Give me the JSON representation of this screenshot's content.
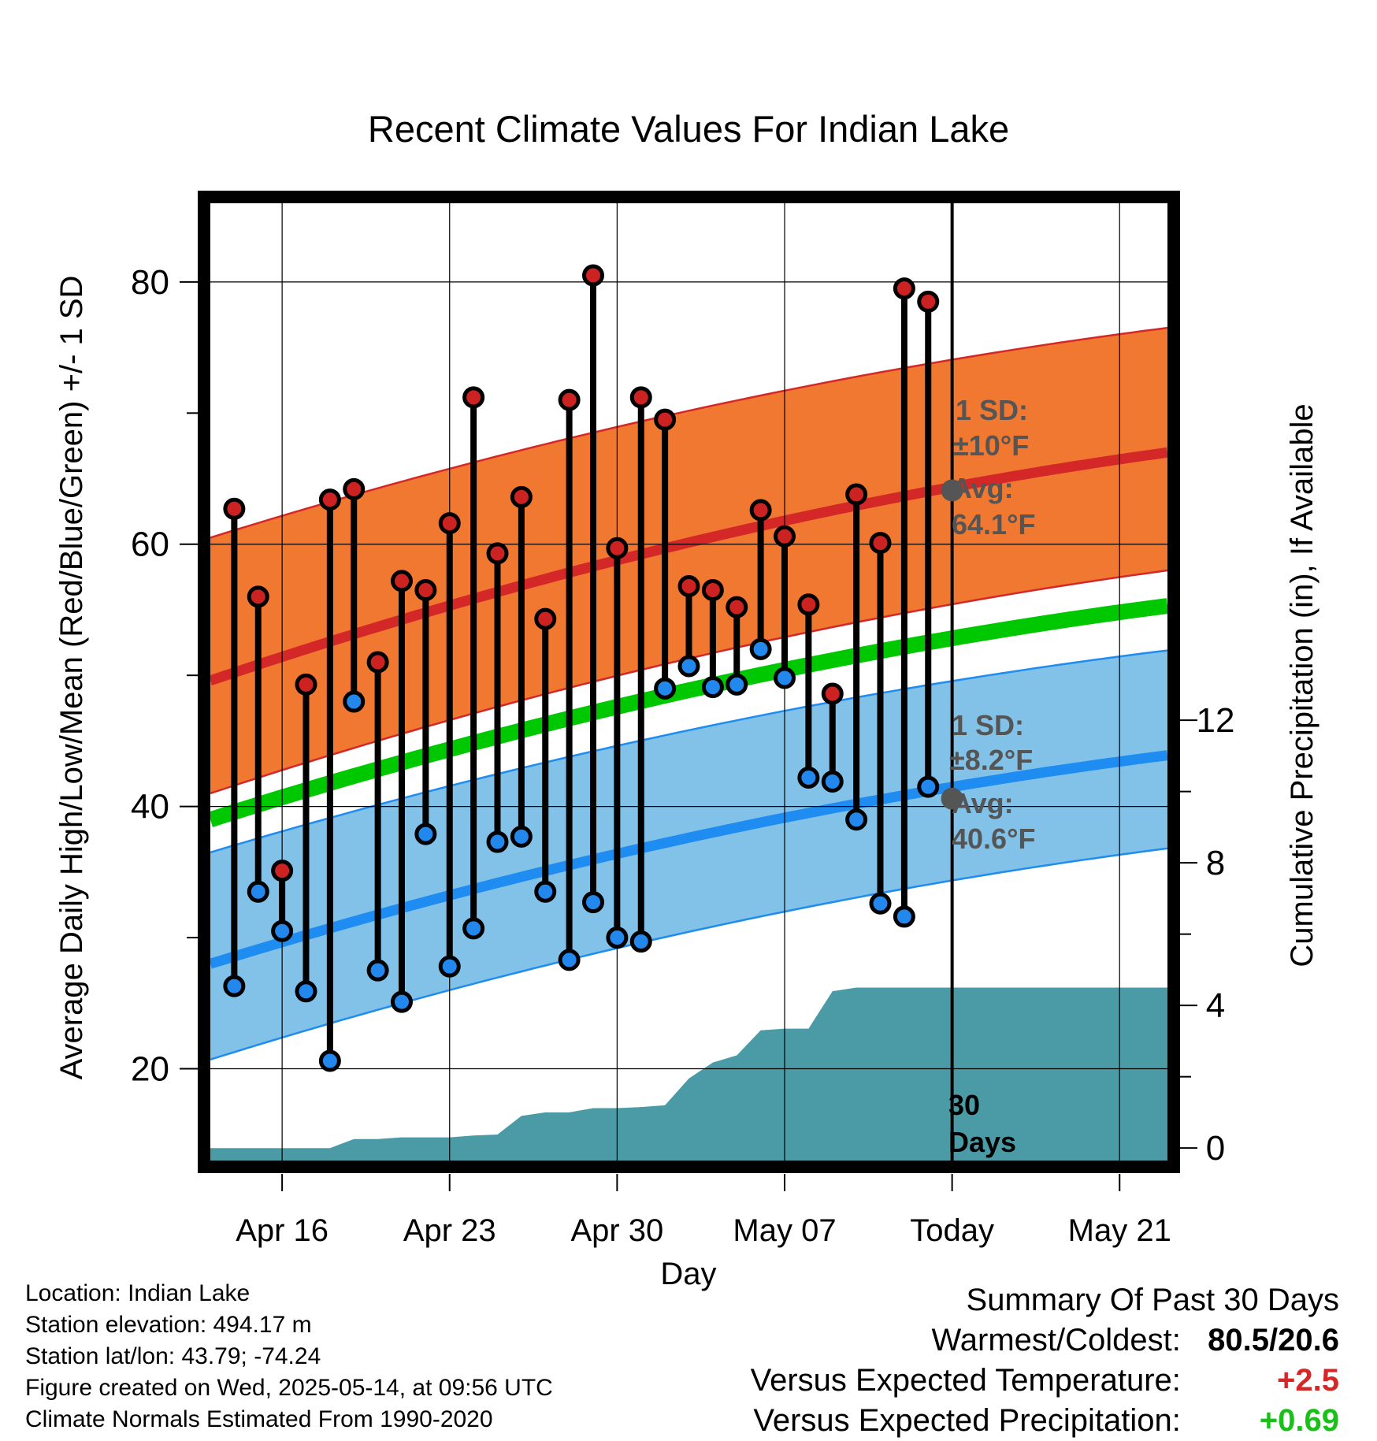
{
  "chart_data": {
    "type": "line",
    "title": "Recent Climate Values For Indian Lake",
    "xlabel": "Day",
    "ylabel_left": "Average Daily High/Low/Mean (Red/Blue/Green) +/- 1 SD",
    "ylabel_right": "Cumulative Precipitation (in), If Available",
    "x_ticks": [
      "Apr 16",
      "Apr 23",
      "Apr 30",
      "May 07",
      "Today",
      "May 21"
    ],
    "y_left_ticks": [
      "20",
      "40",
      "60",
      "80"
    ],
    "y_right_ticks": [
      "0",
      "4",
      "8",
      "12"
    ],
    "x_range": [
      "2025-04-13",
      "2025-05-23"
    ],
    "y_left_range": [
      13,
      86
    ],
    "today": "2025-05-14",
    "normals": {
      "dates": [
        "2025-04-13",
        "2025-05-23"
      ],
      "high_mean": [
        49.6,
        67.0
      ],
      "high_upper": [
        60.5,
        76.5
      ],
      "high_lower": [
        41.0,
        58.0
      ],
      "mean": [
        39.0,
        55.3
      ],
      "low_mean": [
        28.0,
        43.9
      ],
      "low_upper": [
        36.5,
        51.9
      ],
      "low_lower": [
        20.7,
        36.8
      ]
    },
    "observed": [
      {
        "date": "2025-04-14",
        "high": 62.7,
        "low": 26.3
      },
      {
        "date": "2025-04-15",
        "high": 56.0,
        "low": 33.5
      },
      {
        "date": "2025-04-16",
        "high": 35.1,
        "low": 30.5
      },
      {
        "date": "2025-04-17",
        "high": 49.3,
        "low": 25.9
      },
      {
        "date": "2025-04-18",
        "high": 63.4,
        "low": 20.6
      },
      {
        "date": "2025-04-19",
        "high": 64.2,
        "low": 48.0
      },
      {
        "date": "2025-04-20",
        "high": 51.0,
        "low": 27.5
      },
      {
        "date": "2025-04-21",
        "high": 57.2,
        "low": 25.1
      },
      {
        "date": "2025-04-22",
        "high": 56.5,
        "low": 37.9
      },
      {
        "date": "2025-04-23",
        "high": 61.6,
        "low": 27.8
      },
      {
        "date": "2025-04-24",
        "high": 71.2,
        "low": 30.7
      },
      {
        "date": "2025-04-25",
        "high": 59.3,
        "low": 37.3
      },
      {
        "date": "2025-04-26",
        "high": 63.6,
        "low": 37.7
      },
      {
        "date": "2025-04-27",
        "high": 54.3,
        "low": 33.5
      },
      {
        "date": "2025-04-28",
        "high": 71.0,
        "low": 28.3
      },
      {
        "date": "2025-04-29",
        "high": 80.5,
        "low": 32.7
      },
      {
        "date": "2025-04-30",
        "high": 59.7,
        "low": 30.0
      },
      {
        "date": "2025-05-01",
        "high": 71.2,
        "low": 29.7
      },
      {
        "date": "2025-05-02",
        "high": 69.5,
        "low": 49.0
      },
      {
        "date": "2025-05-03",
        "high": 56.8,
        "low": 50.7
      },
      {
        "date": "2025-05-04",
        "high": 56.5,
        "low": 49.1
      },
      {
        "date": "2025-05-05",
        "high": 55.2,
        "low": 49.3
      },
      {
        "date": "2025-05-06",
        "high": 62.6,
        "low": 52.0
      },
      {
        "date": "2025-05-07",
        "high": 60.6,
        "low": 49.8
      },
      {
        "date": "2025-05-08",
        "high": 55.4,
        "low": 42.2
      },
      {
        "date": "2025-05-09",
        "high": 48.6,
        "low": 41.9
      },
      {
        "date": "2025-05-10",
        "high": 63.8,
        "low": 39.0
      },
      {
        "date": "2025-05-11",
        "high": 60.1,
        "low": 32.6
      },
      {
        "date": "2025-05-12",
        "high": 79.5,
        "low": 31.6
      },
      {
        "date": "2025-05-13",
        "high": 78.5,
        "low": 41.5
      }
    ],
    "precipitation_cumulative": [
      {
        "date": "2025-04-13",
        "value": 0.0
      },
      {
        "date": "2025-04-18",
        "value": 0.0
      },
      {
        "date": "2025-04-19",
        "value": 0.25
      },
      {
        "date": "2025-04-20",
        "value": 0.25
      },
      {
        "date": "2025-04-21",
        "value": 0.3
      },
      {
        "date": "2025-04-23",
        "value": 0.3
      },
      {
        "date": "2025-04-24",
        "value": 0.35
      },
      {
        "date": "2025-04-25",
        "value": 0.38
      },
      {
        "date": "2025-04-26",
        "value": 0.9
      },
      {
        "date": "2025-04-27",
        "value": 1.0
      },
      {
        "date": "2025-04-28",
        "value": 1.0
      },
      {
        "date": "2025-04-29",
        "value": 1.12
      },
      {
        "date": "2025-04-30",
        "value": 1.12
      },
      {
        "date": "2025-05-01",
        "value": 1.15
      },
      {
        "date": "2025-05-02",
        "value": 1.2
      },
      {
        "date": "2025-05-03",
        "value": 1.95
      },
      {
        "date": "2025-05-04",
        "value": 2.4
      },
      {
        "date": "2025-05-05",
        "value": 2.6
      },
      {
        "date": "2025-05-06",
        "value": 3.3
      },
      {
        "date": "2025-05-07",
        "value": 3.35
      },
      {
        "date": "2025-05-08",
        "value": 3.35
      },
      {
        "date": "2025-05-09",
        "value": 4.4
      },
      {
        "date": "2025-05-10",
        "value": 4.5
      },
      {
        "date": "2025-05-23",
        "value": 4.5
      }
    ],
    "precip_axis_range": [
      -0.35,
      26.5
    ],
    "annotations": {
      "high": {
        "sd_label": "1 SD:",
        "sd_value": "±10°F",
        "avg_label": "Avg:",
        "avg_value": "64.1°F",
        "avg": 64.1
      },
      "low": {
        "sd_label": "1 SD:",
        "sd_value": "±8.2°F",
        "avg_label": "Avg:",
        "avg_value": "40.6°F",
        "avg": 40.6
      },
      "days_label_1": "30",
      "days_label_2": "Days"
    },
    "colors": {
      "high_band": "#f07830",
      "high_line": "#d42828",
      "low_band": "#82c2e8",
      "low_line": "#1e8cf0",
      "mean_line": "#00c800",
      "precip_fill": "#4a9ba6",
      "high_marker": "#cc2222",
      "low_marker": "#2288ee",
      "annotation_text": "#555555",
      "today_marker": "#555555"
    },
    "grid": true
  },
  "footer": {
    "location": "Location: Indian Lake",
    "elevation": "Station elevation: 494.17 m",
    "latlon": "Station lat/lon: 43.79; -74.24",
    "created": "Figure created on Wed, 2025-05-14, at 09:56 UTC",
    "normals": "Climate Normals Estimated From 1990-2020"
  },
  "summary": {
    "title": "Summary Of Past 30 Days",
    "warm_cold_label": "Warmest/Coldest:",
    "warm_cold_value": "80.5/20.6",
    "temp_label": "Versus Expected Temperature:",
    "temp_value": "+2.5",
    "temp_color": "#d42828",
    "precip_label": "Versus Expected Precipitation:",
    "precip_value": "+0.69",
    "precip_color": "#18c018"
  }
}
